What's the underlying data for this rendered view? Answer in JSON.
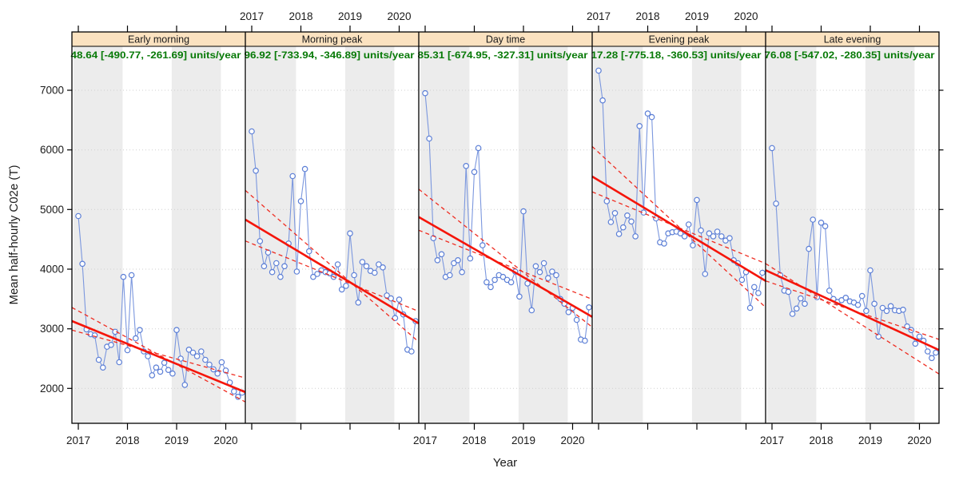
{
  "chart_data": {
    "type": "line",
    "xlabel": "Year",
    "ylabel": "Mean half-hourly C02e (T)",
    "ylim": [
      1400,
      7380
    ],
    "yticks": [
      2000,
      3000,
      4000,
      5000,
      6000,
      7000
    ],
    "xticks": [
      2017,
      2018,
      2019,
      2020
    ],
    "x_start": 2017.0,
    "x_step": 0.0833,
    "x_range": [
      2016.87,
      2020.4
    ],
    "grid": "dotted-horizontal",
    "shaded_year_bands": [
      [
        2016.9,
        2017.9
      ],
      [
        2018.9,
        2019.9
      ]
    ],
    "legend_position": "none",
    "panels": [
      {
        "label": "Early morning",
        "annotation": "48.64 [-490.77, -261.69] units/year",
        "values": [
          4890,
          4090,
          2990,
          2910,
          2890,
          2480,
          2350,
          2700,
          2730,
          2950,
          2440,
          3870,
          2640,
          3900,
          2840,
          2980,
          2620,
          2540,
          2220,
          2350,
          2280,
          2430,
          2310,
          2250,
          2980,
          2500,
          2060,
          2650,
          2600,
          2540,
          2620,
          2480,
          2400,
          2320,
          2250,
          2440,
          2300,
          2100,
          1950,
          1860,
          1930
        ],
        "trend": [
          3130,
          1937
        ],
        "ci_upper_to_lower": [
          3357,
          1773
        ],
        "ci_lower_to_upper": [
          2978,
          2174
        ]
      },
      {
        "label": "Morning peak",
        "annotation": "96.92 [-733.94, -346.89] units/year",
        "values": [
          6310,
          5650,
          4470,
          4050,
          4280,
          3950,
          4100,
          3870,
          4050,
          4430,
          5560,
          3960,
          5140,
          5680,
          4300,
          3870,
          3920,
          3980,
          3950,
          3930,
          3870,
          4080,
          3660,
          3720,
          4600,
          3900,
          3440,
          4120,
          4050,
          3970,
          3940,
          4080,
          4030,
          3560,
          3510,
          3180,
          3490,
          3240,
          2650,
          2620,
          3130
        ],
        "trend": [
          4830,
          3089
        ],
        "ci_upper_to_lower": [
          5321,
          2779
        ],
        "ci_lower_to_upper": [
          4473,
          3292
        ]
      },
      {
        "label": "Day time",
        "annotation": "85.31 [-674.95, -327.31] units/year",
        "values": [
          6950,
          6190,
          4520,
          4150,
          4250,
          3870,
          3900,
          4100,
          4150,
          3950,
          5730,
          4180,
          5630,
          6030,
          4400,
          3780,
          3700,
          3820,
          3900,
          3870,
          3820,
          3780,
          3960,
          3540,
          4970,
          3760,
          3310,
          4050,
          3950,
          4100,
          3850,
          3960,
          3900,
          3500,
          3420,
          3280,
          3350,
          3150,
          2820,
          2800,
          3360
        ],
        "trend": [
          4874,
          3200
        ],
        "ci_upper_to_lower": [
          5340,
          3027
        ],
        "ci_lower_to_upper": [
          4652,
          3495
        ]
      },
      {
        "label": "Evening peak",
        "annotation": "17.28 [-775.18, -360.53] units/year",
        "values": [
          7330,
          6830,
          5140,
          4790,
          4940,
          4590,
          4700,
          4900,
          4800,
          4550,
          6400,
          4950,
          6610,
          6550,
          4850,
          4450,
          4430,
          4600,
          4620,
          4630,
          4600,
          4550,
          4750,
          4400,
          5160,
          4650,
          3920,
          4600,
          4550,
          4630,
          4550,
          4480,
          4520,
          4150,
          4100,
          3820,
          3950,
          3350,
          3700,
          3600,
          3940
        ],
        "trend": [
          5554,
          3803
        ],
        "ci_upper_to_lower": [
          6057,
          3358
        ],
        "ci_lower_to_upper": [
          5297,
          4094
        ]
      },
      {
        "label": "Late evening",
        "annotation": "76.08 [-547.02, -280.35] units/year",
        "values": [
          6030,
          5100,
          3900,
          3640,
          3620,
          3250,
          3340,
          3510,
          3420,
          4340,
          4830,
          3530,
          4780,
          4720,
          3640,
          3500,
          3450,
          3480,
          3520,
          3460,
          3440,
          3400,
          3550,
          3300,
          3980,
          3420,
          2870,
          3350,
          3300,
          3380,
          3310,
          3300,
          3320,
          3040,
          2980,
          2750,
          2870,
          2800,
          2620,
          2510,
          2600
        ],
        "trend": [
          3982,
          2643
        ],
        "ci_upper_to_lower": [
          4094,
          2241
        ],
        "ci_lower_to_upper": [
          3803,
          2821
        ]
      }
    ]
  },
  "colors": {
    "series_line": "#7B97DE",
    "marker": "#5C7FD6",
    "trend": "#F5150A",
    "ci": "#EF2D22",
    "annotation_green": "#087A08",
    "strip_bg": "#FBE2C0",
    "band_gray": "#ECECEC",
    "grid": "#CFCFCF"
  }
}
